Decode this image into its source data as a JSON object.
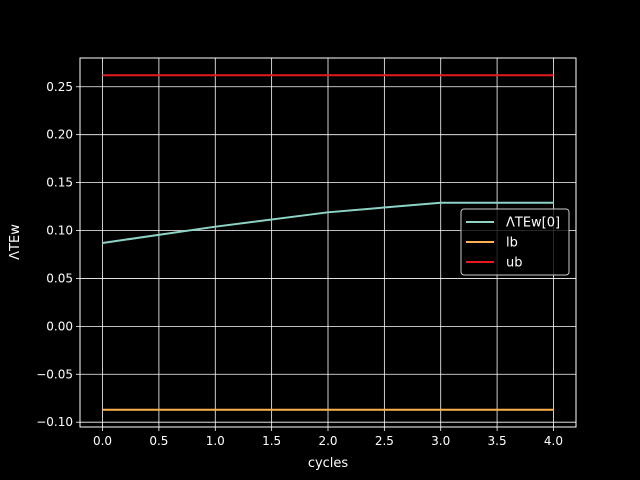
{
  "chart_data": {
    "type": "line",
    "title": "",
    "xlabel": "cycles",
    "ylabel": "ΛTEw",
    "xlim": [
      -0.2,
      4.2
    ],
    "ylim": [
      -0.105,
      0.28
    ],
    "xticks": [
      0.0,
      0.5,
      1.0,
      1.5,
      2.0,
      2.5,
      3.0,
      3.5,
      4.0
    ],
    "xtick_labels": [
      "0.0",
      "0.5",
      "1.0",
      "1.5",
      "2.0",
      "2.5",
      "3.0",
      "3.5",
      "4.0"
    ],
    "yticks": [
      -0.1,
      -0.05,
      0.0,
      0.05,
      0.1,
      0.15,
      0.2,
      0.25
    ],
    "ytick_labels": [
      "−0.10",
      "−0.05",
      "0.00",
      "0.05",
      "0.10",
      "0.15",
      "0.20",
      "0.25"
    ],
    "grid": true,
    "legend_position": "center-right",
    "series": [
      {
        "name": "ΛTEw[0]",
        "color": "#8dd3c7",
        "x": [
          0,
          1,
          2,
          3,
          4
        ],
        "y": [
          0.087,
          0.104,
          0.119,
          0.129,
          0.129
        ]
      },
      {
        "name": "lb",
        "color": "#feb24c",
        "x": [
          0,
          1,
          2,
          3,
          4
        ],
        "y": [
          -0.087,
          -0.087,
          -0.087,
          -0.087,
          -0.087
        ]
      },
      {
        "name": "ub",
        "color": "#e41a1c",
        "x": [
          0,
          1,
          2,
          3,
          4
        ],
        "y": [
          0.262,
          0.262,
          0.262,
          0.262,
          0.262
        ]
      }
    ]
  }
}
